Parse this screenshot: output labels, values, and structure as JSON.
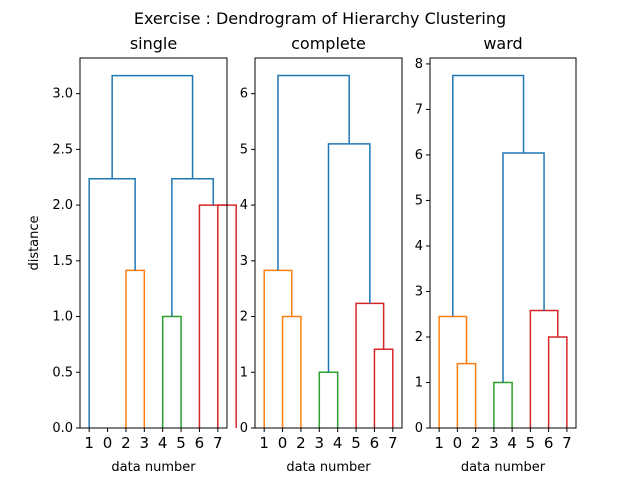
{
  "figure_title": "Exercise : Dendrogram of Hierarchy Clustering",
  "colors": {
    "c1": "#ff7f0e",
    "c2": "#2ca02c",
    "c3": "#d62728",
    "above": "#1f77b4",
    "axes": "#000000"
  },
  "chart_data": [
    {
      "type": "dendrogram",
      "title": "single",
      "xlabel": "data number",
      "ylabel": "distance",
      "ylim": [
        0,
        3.32
      ],
      "yticks": [
        0.0,
        0.5,
        1.0,
        1.5,
        2.0,
        2.5,
        3.0
      ],
      "ytick_labels": [
        "0.0",
        "0.5",
        "1.0",
        "1.5",
        "2.0",
        "2.5",
        "3.0"
      ],
      "leaves": [
        "1",
        "0",
        "2",
        "3",
        "4",
        "5",
        "6",
        "7"
      ],
      "links": [
        {
          "icoord": [
            25,
            25,
            35,
            35
          ],
          "dcoord": [
            0,
            1.414,
            1.414,
            0
          ],
          "color": "c1"
        },
        {
          "icoord": [
            5,
            5,
            30,
            30
          ],
          "dcoord": [
            0,
            2.236,
            2.236,
            1.414
          ],
          "color": "above"
        },
        {
          "icoord": [
            45,
            45,
            55,
            55
          ],
          "dcoord": [
            0,
            1.0,
            1.0,
            0
          ],
          "color": "c2"
        },
        {
          "icoord": [
            75,
            75,
            85,
            85
          ],
          "dcoord": [
            0,
            2.0,
            2.0,
            0
          ],
          "color": "c3"
        },
        {
          "icoord": [
            65,
            65,
            80,
            80
          ],
          "dcoord": [
            0,
            2.0,
            2.0,
            2.0
          ],
          "color": "c3"
        },
        {
          "icoord": [
            50,
            50,
            72.5,
            72.5
          ],
          "dcoord": [
            1.0,
            2.236,
            2.236,
            2.0
          ],
          "color": "above"
        },
        {
          "icoord": [
            17.5,
            17.5,
            61.25,
            61.25
          ],
          "dcoord": [
            2.236,
            3.162,
            3.162,
            2.236
          ],
          "color": "above"
        }
      ]
    },
    {
      "type": "dendrogram",
      "title": "complete",
      "xlabel": "data number",
      "ylabel": "",
      "ylim": [
        0,
        6.64
      ],
      "yticks": [
        0,
        1,
        2,
        3,
        4,
        5,
        6
      ],
      "ytick_labels": [
        "0",
        "1",
        "2",
        "3",
        "4",
        "5",
        "6"
      ],
      "leaves": [
        "1",
        "0",
        "2",
        "3",
        "4",
        "5",
        "6",
        "7"
      ],
      "links": [
        {
          "icoord": [
            15,
            15,
            25,
            25
          ],
          "dcoord": [
            0,
            2.0,
            2.0,
            0
          ],
          "color": "c1"
        },
        {
          "icoord": [
            5,
            5,
            20,
            20
          ],
          "dcoord": [
            0,
            2.828,
            2.828,
            2.0
          ],
          "color": "c1"
        },
        {
          "icoord": [
            35,
            35,
            45,
            45
          ],
          "dcoord": [
            0,
            1.0,
            1.0,
            0
          ],
          "color": "c2"
        },
        {
          "icoord": [
            65,
            65,
            75,
            75
          ],
          "dcoord": [
            0,
            1.414,
            1.414,
            0
          ],
          "color": "c3"
        },
        {
          "icoord": [
            55,
            55,
            70,
            70
          ],
          "dcoord": [
            0,
            2.236,
            2.236,
            1.414
          ],
          "color": "c3"
        },
        {
          "icoord": [
            40,
            40,
            62.5,
            62.5
          ],
          "dcoord": [
            1.0,
            5.099,
            5.099,
            2.236
          ],
          "color": "above"
        },
        {
          "icoord": [
            12.5,
            12.5,
            51.25,
            51.25
          ],
          "dcoord": [
            2.828,
            6.325,
            6.325,
            5.099
          ],
          "color": "above"
        }
      ]
    },
    {
      "type": "dendrogram",
      "title": "ward",
      "xlabel": "data number",
      "ylabel": "",
      "ylim": [
        0,
        8.13
      ],
      "yticks": [
        0,
        1,
        2,
        3,
        4,
        5,
        6,
        7,
        8
      ],
      "ytick_labels": [
        "0",
        "1",
        "2",
        "3",
        "4",
        "5",
        "6",
        "7",
        "8"
      ],
      "leaves": [
        "1",
        "0",
        "2",
        "3",
        "4",
        "5",
        "6",
        "7"
      ],
      "links": [
        {
          "icoord": [
            15,
            15,
            25,
            25
          ],
          "dcoord": [
            0,
            1.414,
            1.414,
            0
          ],
          "color": "c1"
        },
        {
          "icoord": [
            5,
            5,
            20,
            20
          ],
          "dcoord": [
            0,
            2.449,
            2.449,
            1.414
          ],
          "color": "c1"
        },
        {
          "icoord": [
            35,
            35,
            45,
            45
          ],
          "dcoord": [
            0,
            1.0,
            1.0,
            0
          ],
          "color": "c2"
        },
        {
          "icoord": [
            65,
            65,
            75,
            75
          ],
          "dcoord": [
            0,
            2.0,
            2.0,
            0
          ],
          "color": "c3"
        },
        {
          "icoord": [
            55,
            55,
            70,
            70
          ],
          "dcoord": [
            0,
            2.582,
            2.582,
            2.0
          ],
          "color": "c3"
        },
        {
          "icoord": [
            40,
            40,
            62.5,
            62.5
          ],
          "dcoord": [
            1.0,
            6.042,
            6.042,
            2.582
          ],
          "color": "above"
        },
        {
          "icoord": [
            12.5,
            12.5,
            51.25,
            51.25
          ],
          "dcoord": [
            2.449,
            7.746,
            7.746,
            6.042
          ],
          "color": "above"
        }
      ]
    }
  ]
}
